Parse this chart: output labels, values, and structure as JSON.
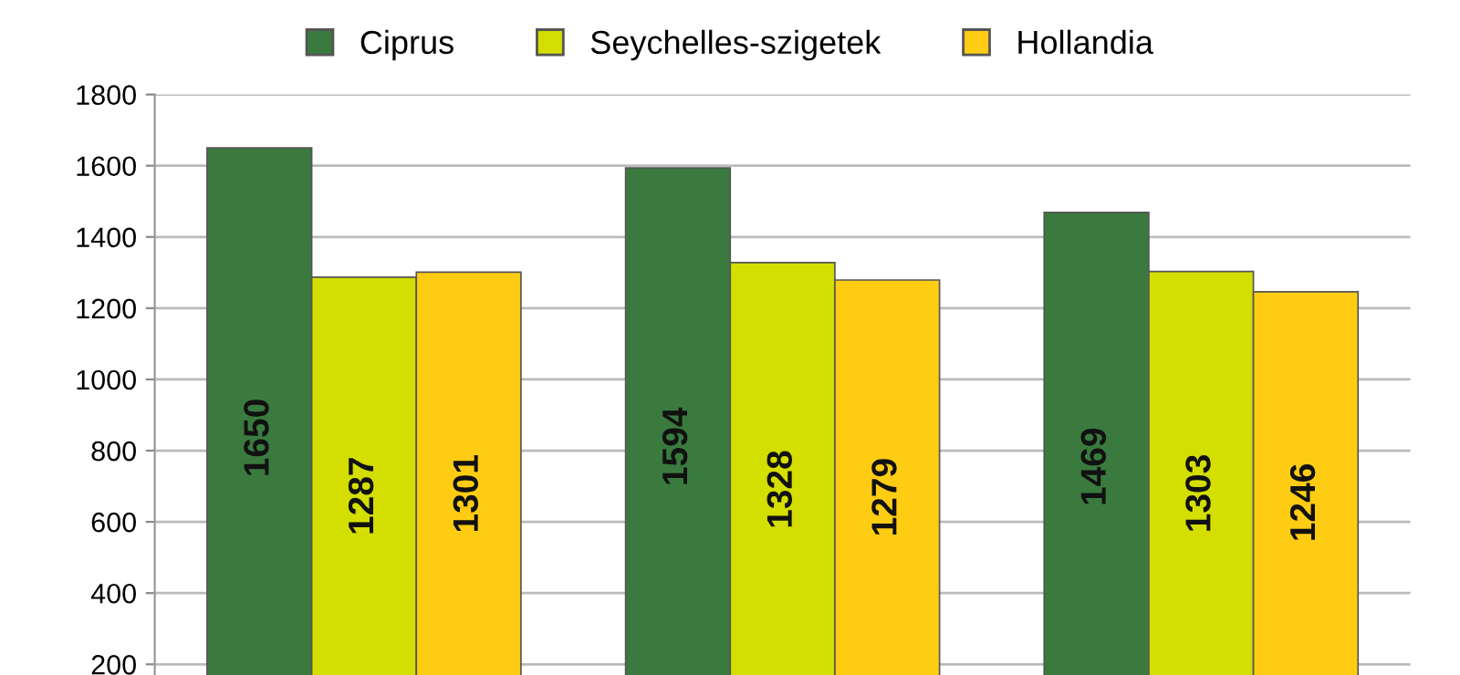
{
  "chart_data": {
    "type": "bar",
    "categories": [
      null,
      null,
      null
    ],
    "series": [
      {
        "name": "Ciprus",
        "color": "#3a7a3e",
        "values": [
          1650,
          1594,
          1469
        ]
      },
      {
        "name": "Seychelles-szigetek",
        "color": "#d4de00",
        "values": [
          1287,
          1328,
          1303
        ]
      },
      {
        "name": "Hollandia",
        "color": "#ffcc14",
        "values": [
          1301,
          1279,
          1246
        ]
      }
    ],
    "ylim": [
      170,
      1800
    ],
    "yticks": [
      200,
      400,
      600,
      800,
      1000,
      1200,
      1400,
      1600,
      1800
    ],
    "grid": "y",
    "legend": "top",
    "data_labels": true
  }
}
